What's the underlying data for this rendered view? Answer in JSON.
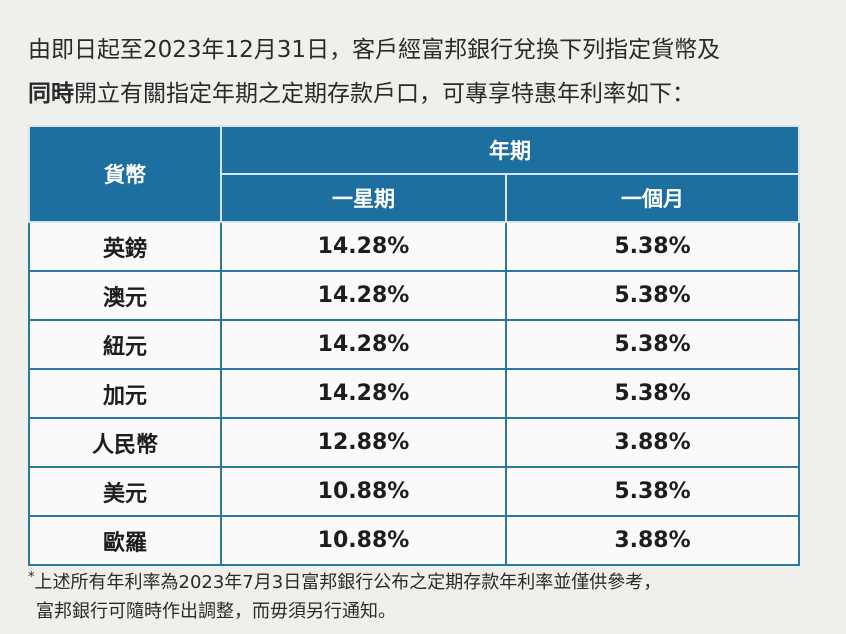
{
  "intro": {
    "line1": "由即日起至2023年12月31日，客戶經富邦銀行兌換下列指定貨幣及",
    "line2_bold": "同時",
    "line2_rest": "開立有關指定年期之定期存款戶口，可專享特惠年利率如下："
  },
  "table": {
    "header": {
      "currency": "貨幣",
      "term": "年期",
      "terms": [
        "一星期",
        "一個月"
      ]
    },
    "rows": [
      [
        "英鎊",
        "14.28%",
        "5.38%"
      ],
      [
        "澳元",
        "14.28%",
        "5.38%"
      ],
      [
        "紐元",
        "14.28%",
        "5.38%"
      ],
      [
        "加元",
        "14.28%",
        "5.38%"
      ],
      [
        "人民幣",
        "12.88%",
        "3.88%"
      ],
      [
        "美元",
        "10.88%",
        "5.38%"
      ],
      [
        "歐羅",
        "10.88%",
        "3.88%"
      ]
    ]
  },
  "footnote": {
    "marker": "*",
    "lines": [
      "上述所有年利率為2023年7月3日富邦銀行公布之定期存款年利率並僅供參考，",
      "富邦銀行可隨時作出調整，而毋須另行通知。"
    ]
  }
}
